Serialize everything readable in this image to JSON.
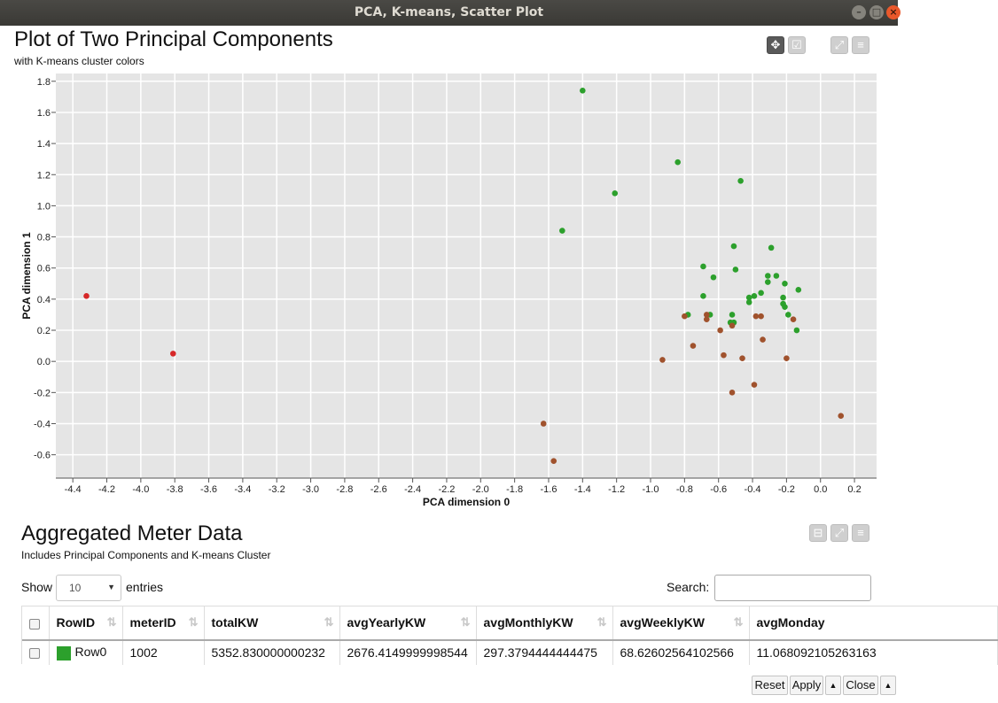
{
  "window": {
    "title": "PCA, K-means, Scatter Plot"
  },
  "chart": {
    "title": "Plot of Two Principal Components",
    "subtitle": "with K-means cluster colors",
    "tools": [
      "move-icon",
      "select-icon",
      "fullscreen-icon",
      "menu-icon"
    ]
  },
  "chart_data": {
    "type": "scatter",
    "title": "Plot of Two Principal Components",
    "subtitle": "with K-means cluster colors",
    "xlabel": "PCA dimension 0",
    "ylabel": "PCA dimension 1",
    "xlim": [
      -4.5,
      0.33
    ],
    "ylim": [
      -0.75,
      1.85
    ],
    "x_ticks": [
      "-4.4",
      "-4.2",
      "-4.0",
      "-3.8",
      "-3.6",
      "-3.4",
      "-3.2",
      "-3.0",
      "-2.8",
      "-2.6",
      "-2.4",
      "-2.2",
      "-2.0",
      "-1.8",
      "-1.6",
      "-1.4",
      "-1.2",
      "-1.0",
      "-0.8",
      "-0.6",
      "-0.4",
      "-0.2",
      "0.0",
      "0.2"
    ],
    "y_ticks": [
      "-0.6",
      "-0.4",
      "-0.2",
      "0.0",
      "0.2",
      "0.4",
      "0.6",
      "0.8",
      "1.0",
      "1.2",
      "1.4",
      "1.6",
      "1.8"
    ],
    "grid": true,
    "background": "#e5e5e5",
    "series": [
      {
        "color": "#2ca02c",
        "points": [
          [
            -1.4,
            1.74
          ],
          [
            -0.84,
            1.28
          ],
          [
            -0.47,
            1.16
          ],
          [
            -1.21,
            1.08
          ],
          [
            -1.52,
            0.84
          ],
          [
            -0.51,
            0.74
          ],
          [
            -0.29,
            0.73
          ],
          [
            -0.69,
            0.61
          ],
          [
            -0.5,
            0.59
          ],
          [
            -0.63,
            0.54
          ],
          [
            -0.31,
            0.55
          ],
          [
            -0.26,
            0.55
          ],
          [
            -0.31,
            0.51
          ],
          [
            -0.21,
            0.5
          ],
          [
            -0.13,
            0.46
          ],
          [
            -0.35,
            0.44
          ],
          [
            -0.39,
            0.42
          ],
          [
            -0.42,
            0.41
          ],
          [
            -0.22,
            0.41
          ],
          [
            -0.42,
            0.38
          ],
          [
            -0.69,
            0.42
          ],
          [
            -0.22,
            0.37
          ],
          [
            -0.21,
            0.35
          ],
          [
            -0.78,
            0.3
          ],
          [
            -0.65,
            0.3
          ],
          [
            -0.52,
            0.3
          ],
          [
            -0.19,
            0.3
          ],
          [
            -0.53,
            0.25
          ],
          [
            -0.51,
            0.25
          ],
          [
            -0.14,
            0.2
          ]
        ]
      },
      {
        "color": "#a0522d",
        "points": [
          [
            -0.8,
            0.29
          ],
          [
            -0.67,
            0.3
          ],
          [
            -0.38,
            0.29
          ],
          [
            -0.35,
            0.29
          ],
          [
            -0.67,
            0.27
          ],
          [
            -0.16,
            0.27
          ],
          [
            -0.52,
            0.23
          ],
          [
            -0.59,
            0.2
          ],
          [
            -0.34,
            0.14
          ],
          [
            -0.75,
            0.1
          ],
          [
            -0.57,
            0.04
          ],
          [
            -0.46,
            0.02
          ],
          [
            -0.2,
            0.02
          ],
          [
            -0.93,
            0.01
          ],
          [
            -0.39,
            -0.15
          ],
          [
            -0.52,
            -0.2
          ],
          [
            0.12,
            -0.35
          ],
          [
            -1.63,
            -0.4
          ],
          [
            -1.57,
            -0.64
          ]
        ]
      },
      {
        "color": "#d62728",
        "points": [
          [
            -4.32,
            0.42
          ],
          [
            -3.81,
            0.05
          ]
        ]
      }
    ]
  },
  "table_section": {
    "title": "Aggregated Meter Data",
    "subtitle": "Includes Principal Components and K-means Cluster",
    "show_label": "Show",
    "entries_value": "10",
    "entries_label": "entries",
    "search_label": "Search:",
    "search_value": "",
    "columns": [
      "RowID",
      "meterID",
      "totalKW",
      "avgYearlyKW",
      "avgMonthlyKW",
      "avgWeeklyKW",
      "avgMonday"
    ],
    "rows": [
      {
        "swatch_color": "#2ca02c",
        "cells": [
          "Row0",
          "1002",
          "5352.830000000232",
          "2676.4149999998544",
          "297.3794444444475",
          "68.62602564102566",
          "11.068092105263163"
        ]
      }
    ]
  },
  "footer": {
    "reset": "Reset",
    "apply": "Apply",
    "close": "Close"
  }
}
